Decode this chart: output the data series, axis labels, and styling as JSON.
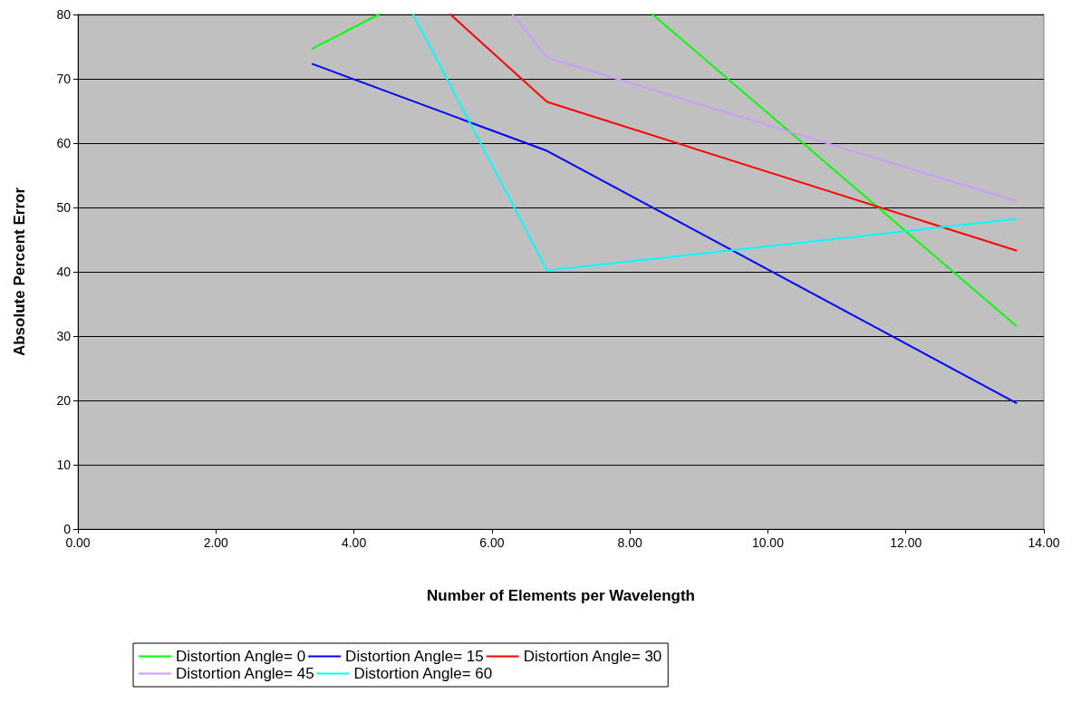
{
  "chart_data": {
    "type": "line",
    "xlabel": "Number of Elements per Wavelength",
    "ylabel": "Absolute Percent Error",
    "x": [
      3.4,
      6.8,
      13.6
    ],
    "series": [
      {
        "name": "Distortion Angle= 0",
        "color": "#00ff00",
        "x": [
          3.4,
          4.36,
          6.8,
          8.33,
          13.6
        ],
        "values": [
          74.7,
          80,
          null,
          80,
          31.6
        ]
      },
      {
        "name": "Distortion Angle= 15",
        "color": "#0000ff",
        "values": [
          72.3,
          58.8,
          19.6
        ]
      },
      {
        "name": "Distortion Angle= 30",
        "color": "#ff0000",
        "x": [
          5.4,
          6.8,
          13.6
        ],
        "values": [
          80,
          66.4,
          43.3
        ]
      },
      {
        "name": "Distortion Angle= 45",
        "color": "#cc99ff",
        "x": [
          6.3,
          6.8,
          13.6
        ],
        "values": [
          80,
          73.3,
          51.0
        ]
      },
      {
        "name": "Distortion Angle= 60",
        "color": "#00ffff",
        "x": [
          4.86,
          6.8,
          13.6
        ],
        "values": [
          80,
          40.2,
          48.2
        ]
      }
    ],
    "xlim": [
      0,
      14
    ],
    "xticks": [
      {
        "value": 0,
        "label": "0.00"
      },
      {
        "value": 2,
        "label": "2.00"
      },
      {
        "value": 4,
        "label": "4.00"
      },
      {
        "value": 6,
        "label": "6.00"
      },
      {
        "value": 8,
        "label": "8.00"
      },
      {
        "value": 10,
        "label": "10.00"
      },
      {
        "value": 12,
        "label": "12.00"
      },
      {
        "value": 14,
        "label": "14.00"
      }
    ],
    "ylim": [
      0,
      80
    ],
    "yticks": [
      0,
      10,
      20,
      30,
      40,
      50,
      60,
      70,
      80
    ],
    "grid": "y",
    "legend": "bottom",
    "marker": "none",
    "line_style": "solid"
  }
}
